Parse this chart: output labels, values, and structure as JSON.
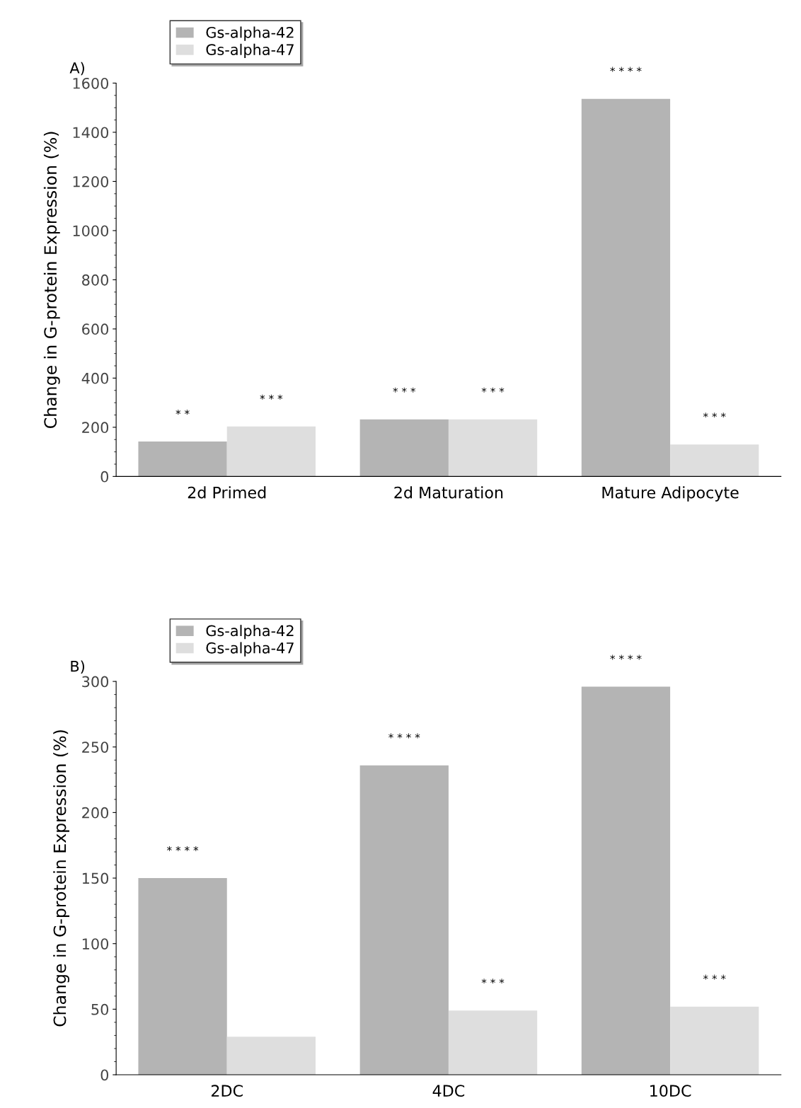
{
  "chart_data": [
    {
      "type": "bar",
      "title": "A)",
      "ylabel": "Change in G-protein Expression (%)",
      "categories": [
        "2d Primed",
        "2d Maturation",
        "Mature Adipocyte"
      ],
      "series": [
        {
          "name": "Gs-alpha-42",
          "color": "#b4b4b4",
          "values": [
            142,
            232,
            1536
          ],
          "value_labels": [
            "* *",
            "* * *",
            "* * * *"
          ]
        },
        {
          "name": "Gs-alpha-47",
          "color": "#dedede",
          "values": [
            203,
            232,
            130
          ],
          "value_labels": [
            "* * *",
            "* * *",
            "* * *"
          ]
        }
      ],
      "ylim": [
        0,
        1600
      ],
      "yticks": [
        0,
        200,
        400,
        600,
        800,
        1000,
        1200,
        1400,
        1600
      ],
      "legend": "top left"
    },
    {
      "type": "bar",
      "title": "B)",
      "ylabel": "Change in G-protein Expression (%)",
      "categories": [
        "2DC",
        "4DC",
        "10DC"
      ],
      "series": [
        {
          "name": "Gs-alpha-42",
          "color": "#b4b4b4",
          "values": [
            150,
            236,
            296
          ],
          "value_labels": [
            "* * * *",
            "* * * *",
            "* * * *"
          ]
        },
        {
          "name": "Gs-alpha-47",
          "color": "#dedede",
          "values": [
            29,
            49,
            52
          ],
          "value_labels": [
            null,
            "* * *",
            "* * *"
          ]
        }
      ],
      "ylim": [
        0,
        300
      ],
      "yticks": [
        0,
        50,
        100,
        150,
        200,
        250,
        300
      ],
      "legend": "top left"
    }
  ]
}
